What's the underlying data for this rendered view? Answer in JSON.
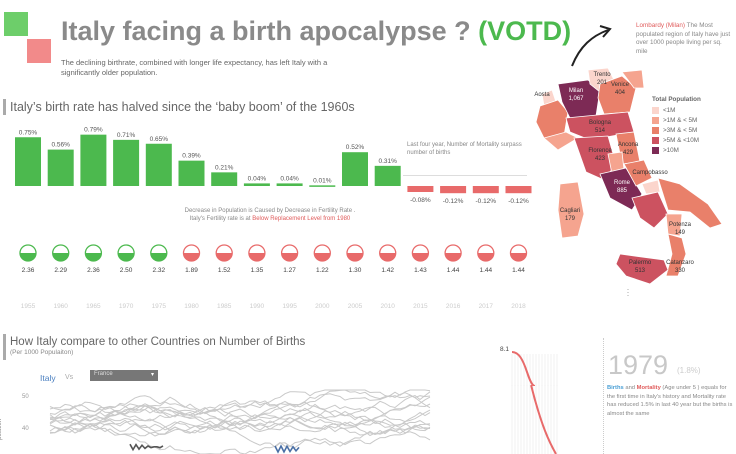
{
  "header": {
    "title_main": "Italy facing a birth apocalypse ?",
    "title_votd": "(VOTD)",
    "subtitle": "The declining birthrate, combined with longer life expectancy, has left Italy with a significantly older population.",
    "colors": {
      "green": "#4cb94e",
      "red": "#f08080"
    }
  },
  "section1": {
    "title": "Italy’s birth rate has  halved since the ‘baby boom’ of the 1960s",
    "mortality_note": "Last four year, Number of Mortality surpass number of births",
    "fertility_note_1": "Decrease in Population is Caused by Decrease in Fertility Rate .",
    "fertility_note_2_prefix": "Italy's Fertility rate is at ",
    "fertility_note_2_highlight": "Below Replacement Level from 1980"
  },
  "chart_data": [
    {
      "type": "bar",
      "categories": [
        "1955",
        "1960",
        "1965",
        "1970",
        "1975",
        "1980",
        "1985",
        "1990",
        "1995",
        "2000",
        "2005",
        "2010",
        "2015",
        "2016",
        "2017",
        "2018"
      ],
      "values": [
        0.75,
        0.56,
        0.79,
        0.71,
        0.65,
        0.39,
        0.21,
        0.04,
        0.04,
        0.01,
        0.52,
        0.31,
        -0.08,
        -0.12,
        -0.12,
        -0.12
      ],
      "labels": [
        "0.75%",
        "0.56%",
        "0.79%",
        "0.71%",
        "0.65%",
        "0.39%",
        "0.21%",
        "0.04%",
        "0.04%",
        "0.01%",
        "0.52%",
        "0.31%",
        "-0.08%",
        "-0.12%",
        "-0.12%",
        "-0.12%"
      ],
      "colors": {
        "positive": "#4cb94e",
        "negative": "#e86a6a"
      }
    },
    {
      "type": "table",
      "categories": [
        "1955",
        "1960",
        "1965",
        "1970",
        "1975",
        "1980",
        "1985",
        "1990",
        "1995",
        "2000",
        "2005",
        "2010",
        "2015",
        "2016",
        "2017",
        "2018"
      ],
      "values": [
        2.36,
        2.29,
        2.36,
        2.5,
        2.32,
        1.89,
        1.52,
        1.35,
        1.27,
        1.22,
        1.3,
        1.42,
        1.43,
        1.44,
        1.44,
        1.44
      ],
      "labels": [
        "2.36",
        "2.29",
        "2.36",
        "2.50",
        "2.32",
        "1.89",
        "1.52",
        "1.35",
        "1.27",
        "1.22",
        "1.30",
        "1.42",
        "1.43",
        "1.44",
        "1.44",
        "1.44"
      ],
      "above_replacement": [
        true,
        true,
        true,
        true,
        true,
        false,
        false,
        false,
        false,
        false,
        false,
        false,
        false,
        false,
        false,
        false
      ]
    },
    {
      "type": "line",
      "title": "How  Italy compare to other Countries on Number of Births",
      "subtitle": "(Per 1000 Populaiton)",
      "ylabel": "pulation",
      "yticks": [
        "50",
        "40"
      ]
    },
    {
      "type": "area",
      "max_label": "8.1"
    }
  ],
  "section2": {
    "title": "How  Italy compare to other Countries on Number of Births",
    "subtitle": "(Per 1000 Populaiton)",
    "selector_country": "Italy",
    "selector_vs": "Vs",
    "selector_value": "France",
    "ylabel": "pulation",
    "yticks": [
      "50",
      "40"
    ]
  },
  "map": {
    "note_city": "Lombardy (Milan)",
    "note_rest": "The Most populated region of Italy have just over 1000 people living per sq. mile",
    "legend_title": "Total Population",
    "legend": [
      {
        "label": "<1M",
        "color": "#fbd5cc"
      },
      {
        "label": ">1M & < 5M",
        "color": "#f5a48f"
      },
      {
        "label": ">3M & < 5M",
        "color": "#e9806a"
      },
      {
        "label": ">5M & <10M",
        "color": "#cc5260"
      },
      {
        "label": ">10M",
        "color": "#7d2a55"
      }
    ],
    "labels": [
      {
        "text": "Milan",
        "region": "lombardy"
      },
      {
        "text": "1,067",
        "region": "lombardy"
      },
      {
        "text": "Trento",
        "region": "trentino"
      },
      {
        "text": "201",
        "region": "trentino"
      },
      {
        "text": "Venice",
        "region": "veneto"
      },
      {
        "text": "404",
        "region": "veneto"
      },
      {
        "text": "Aosta",
        "region": "aosta"
      },
      {
        "text": "Bologna",
        "region": "emilia"
      },
      {
        "text": "514",
        "region": "emilia"
      },
      {
        "text": "Florence",
        "region": "tuscany"
      },
      {
        "text": "423",
        "region": "tuscany"
      },
      {
        "text": "Ancona",
        "region": "marche"
      },
      {
        "text": "429",
        "region": "marche"
      },
      {
        "text": "Rome",
        "region": "lazio"
      },
      {
        "text": "885",
        "region": "lazio"
      },
      {
        "text": "Campobasso",
        "region": "molise"
      },
      {
        "text": "Potenza",
        "region": "basilicata"
      },
      {
        "text": "149",
        "region": "basilicata"
      },
      {
        "text": "Catanzaro",
        "region": "calabria"
      },
      {
        "text": "330",
        "region": "calabria"
      },
      {
        "text": "Cagliari",
        "region": "sardinia"
      },
      {
        "text": "179",
        "region": "sardinia"
      },
      {
        "text": "Palermo",
        "region": "sicily"
      },
      {
        "text": "513",
        "region": "sicily"
      }
    ]
  },
  "year_panel": {
    "year": "1979",
    "pct": "(1.8%)",
    "births": "Births",
    "and": " and ",
    "mortality": "Mortality",
    "desc": " (Age under 5 ) equals for the first time in Italy's history and Mortality rate  has reduced 1.5% in last 40 year but the births is almost the same"
  }
}
